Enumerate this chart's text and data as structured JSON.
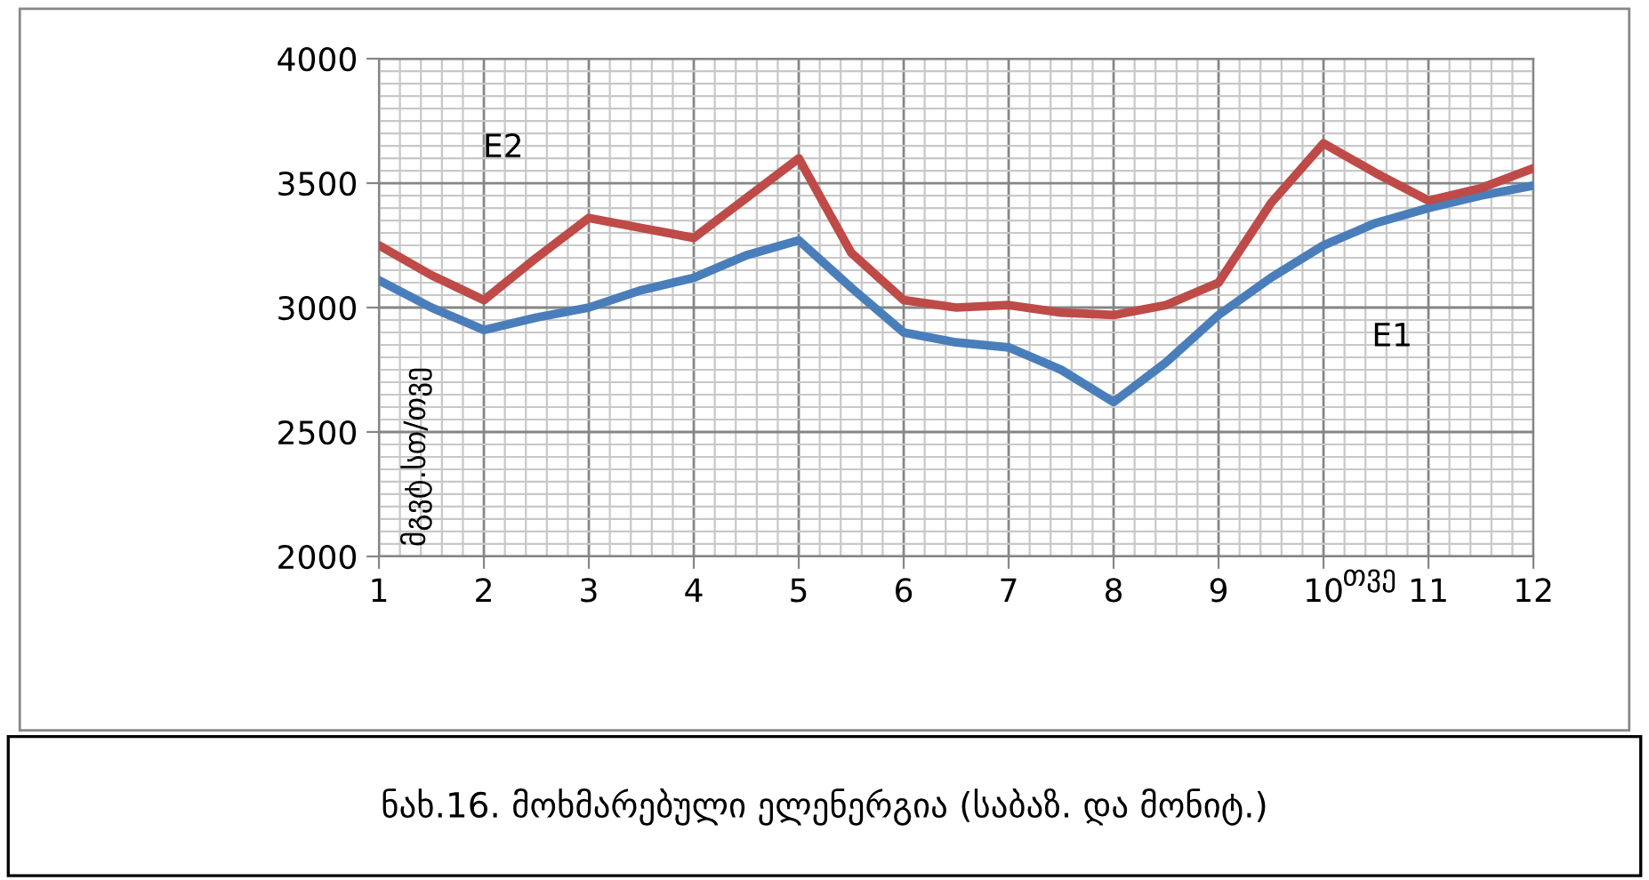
{
  "chart_data": {
    "type": "line",
    "title": "ნახ.16. მოხმარებული ელენერგია (საბაზ. და მონიტ.)",
    "xlabel": "თვე",
    "ylabel": "მგვტ.სთ/თვე",
    "x": [
      1,
      1.5,
      2,
      2.5,
      3,
      3.5,
      4,
      4.5,
      5,
      5.5,
      6,
      6.5,
      7,
      7.5,
      8,
      8.5,
      9,
      9.5,
      10,
      10.5,
      11,
      11.5,
      12
    ],
    "series": [
      {
        "name": "E1",
        "color": "#4a7ebb",
        "values": [
          3110,
          3000,
          2910,
          2960,
          3000,
          3070,
          3120,
          3210,
          3270,
          3080,
          2900,
          2860,
          2840,
          2750,
          2620,
          2780,
          2970,
          3120,
          3250,
          3340,
          3400,
          3450,
          3490
        ]
      },
      {
        "name": "E2",
        "color": "#be4b48",
        "values": [
          3250,
          3130,
          3030,
          3200,
          3360,
          3320,
          3280,
          3440,
          3600,
          3220,
          3030,
          3000,
          3010,
          2980,
          2970,
          3010,
          3100,
          3420,
          3660,
          3540,
          3430,
          3480,
          3560
        ]
      }
    ],
    "xlim": [
      1,
      12
    ],
    "xticks": [
      1,
      2,
      3,
      4,
      5,
      6,
      7,
      8,
      9,
      10,
      11,
      12
    ],
    "ylim": [
      2000,
      4000
    ],
    "yticks": [
      2000,
      2500,
      3000,
      3500,
      4000
    ],
    "grid": true,
    "legend": false,
    "marker": "none",
    "line_style": "solid"
  }
}
